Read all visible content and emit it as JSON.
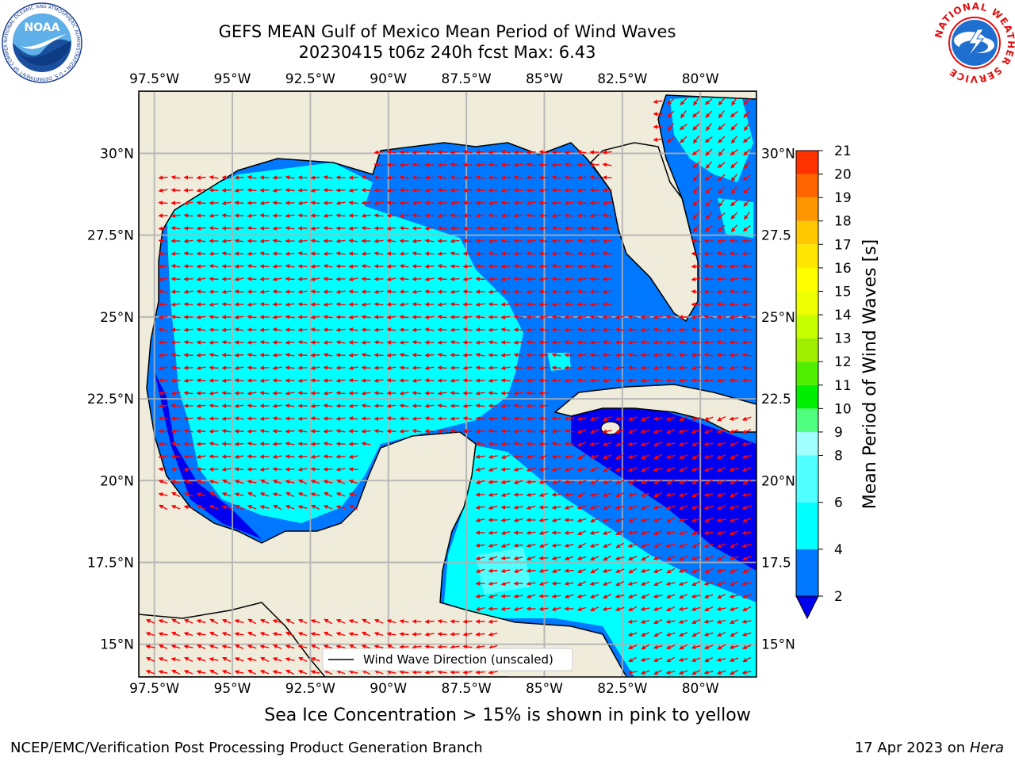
{
  "header": {
    "title_line1": "GEFS MEAN Gulf of Mexico Mean Period of Wind Waves",
    "title_line2": "20230415 t06z 240h fcst   Max: 6.43"
  },
  "map": {
    "lon_ticks": [
      "97.5°W",
      "95°W",
      "92.5°W",
      "90°W",
      "87.5°W",
      "85°W",
      "82.5°W",
      "80°W"
    ],
    "lon_values": [
      -97.5,
      -95,
      -92.5,
      -90,
      -87.5,
      -85,
      -82.5,
      -80
    ],
    "lat_ticks": [
      "30°N",
      "27.5°N",
      "25°N",
      "22.5°N",
      "20°N",
      "17.5°N",
      "15°N"
    ],
    "lat_values": [
      30,
      27.5,
      25,
      22.5,
      20,
      17.5,
      15
    ],
    "lat_ticks_right": [
      "30°N",
      "27.5",
      "25°N",
      "22.5",
      "20°N",
      "17.5",
      "15°N"
    ],
    "extent": {
      "lon_min": -98,
      "lon_max": -78.2,
      "lat_min": 14,
      "lat_max": 31.9
    },
    "legend_label": "Wind Wave Direction (unscaled)",
    "land_color": "#efecdc",
    "arrow_color": "#ff0000",
    "max_value": 6.43
  },
  "colorbar": {
    "label": "Mean Period of Wind Waves [s]",
    "ticks": [
      "2",
      "4",
      "6",
      "8",
      "9",
      "10",
      "11",
      "12",
      "13",
      "14",
      "15",
      "16",
      "17",
      "18",
      "19",
      "20",
      "21"
    ],
    "tick_values": [
      2,
      4,
      6,
      8,
      9,
      10,
      11,
      12,
      13,
      14,
      15,
      16,
      17,
      18,
      19,
      20,
      21
    ],
    "under_color": "#0000ee",
    "colors": [
      "#0077ff",
      "#00ffff",
      "#50ffff",
      "#a0ffff",
      "#50ff80",
      "#00ee00",
      "#50ee00",
      "#a0ee00",
      "#c8ff00",
      "#eeff00",
      "#ffff00",
      "#ffe600",
      "#ffc800",
      "#ff9600",
      "#ff6400",
      "#ff3200",
      "#ff0000"
    ]
  },
  "caption": "Sea Ice Concentration > 15% is shown in pink to yellow",
  "footer": {
    "left": "NCEP/EMC/Verification Post Processing Product Generation Branch",
    "right_date": "17 Apr 2023 on ",
    "right_host": "Hera"
  },
  "logos": {
    "noaa_text": "NOAA",
    "noaa_ring_text": "NATIONAL OCEANIC AND ATMOSPHERIC ADMINISTRATION • U.S. DEPARTMENT OF COMMERCE",
    "nws_ring_text": "NATIONAL WEATHER SERVICE"
  }
}
